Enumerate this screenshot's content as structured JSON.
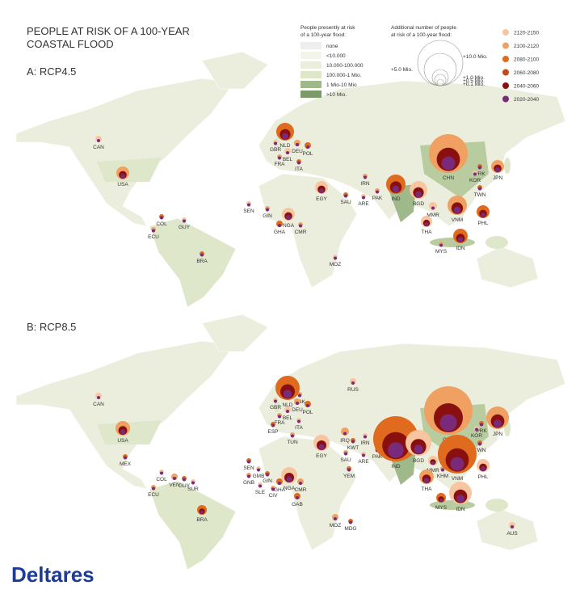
{
  "header": {
    "title": [
      "PEOPLE AT RISK OF A 100-YEAR",
      "COASTAL FLOOD"
    ]
  },
  "legend_present": {
    "title": [
      "People presently at risk",
      "of a 100-year flood:"
    ],
    "items": [
      "none",
      "<10.000",
      "10.000-100.000",
      "100.000-1 Mio.",
      "1 Mio-10 Mio",
      ">10 Mio."
    ]
  },
  "legend_additional": {
    "title": [
      "Additional number of people",
      "at risk of a 100-year flood:"
    ],
    "items": [
      "+10.0 Mio.",
      "+5.0 Mio.",
      "+1.0 Mio.",
      "+0.5 Mio.",
      "+0.1 Mio."
    ]
  },
  "legend_period": {
    "items": [
      "2120-2150",
      "2100-2120",
      "2080-2100",
      "2060-2080",
      "2040-2060",
      "2020-2040"
    ]
  },
  "panels": [
    {
      "title": "A: RCP4.5",
      "countries": [
        "CAN",
        "USA",
        "NLD",
        "GBR",
        "DEU",
        "POL",
        "BEL",
        "FRA",
        "ITA",
        "SEN",
        "GIN",
        "GHA",
        "NGA",
        "CMR",
        "COL",
        "GUY",
        "ECU",
        "BRA",
        "EGY",
        "IRN",
        "SAU",
        "ARE",
        "PAK",
        "IND",
        "BGD",
        "CHN",
        "PRK",
        "KOR",
        "JPN",
        "TWN",
        "MMR",
        "VNM",
        "PHL",
        "THA",
        "MYS",
        "IDN",
        "MOZ"
      ]
    },
    {
      "title": "B: RCP8.5",
      "countries": [
        "CAN",
        "USA",
        "MEX",
        "RUS",
        "DNK",
        "NLD",
        "GBR",
        "DEU",
        "POL",
        "BEL",
        "FRA",
        "ESP",
        "ITA",
        "TUN",
        "SEN",
        "GMB",
        "GNB",
        "GIN",
        "SLE",
        "CIV",
        "GHA",
        "NGA",
        "CMR",
        "GAB",
        "COL",
        "VEN",
        "GUY",
        "SUR",
        "ECU",
        "BRA",
        "EGY",
        "IRQ",
        "KWT",
        "IRN",
        "SAU",
        "YEM",
        "ARE",
        "PAK",
        "IND",
        "BGD",
        "CHN",
        "PRK",
        "KOR",
        "JPN",
        "TWN",
        "MMR",
        "KHM",
        "VNM",
        "PHL",
        "THA",
        "MYS",
        "IDN",
        "MOZ",
        "MDG",
        "AUS"
      ]
    }
  ],
  "logo": "Deltares"
}
